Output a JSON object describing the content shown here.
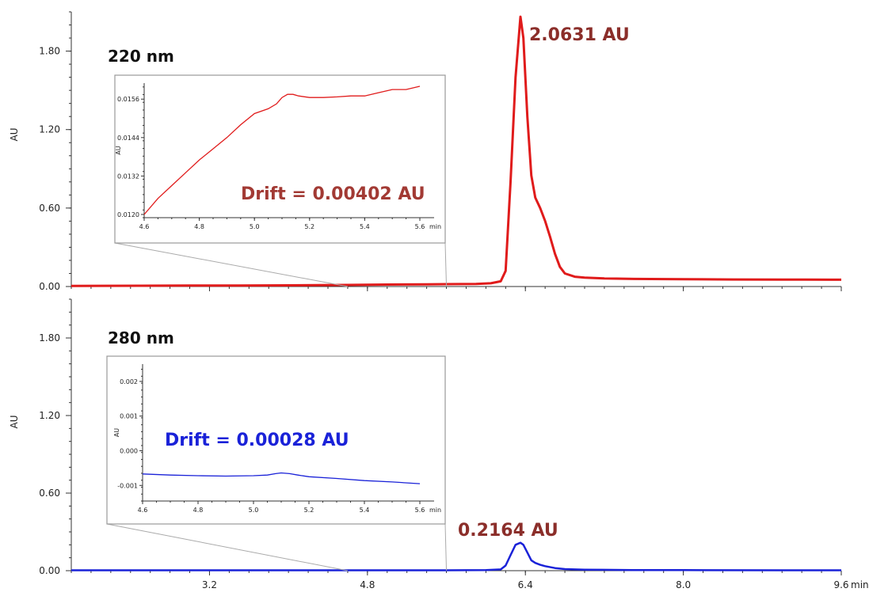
{
  "chart_data": [
    {
      "type": "line",
      "title": "220 nm",
      "ylabel": "AU",
      "xlabel": "",
      "x_unit": "min",
      "xlim": [
        1.8,
        9.6
      ],
      "ylim": [
        0,
        2.1
      ],
      "y_ticks": [
        "0.00",
        "0.60",
        "1.20",
        "1.80"
      ],
      "x_ticks": [
        "3.2",
        "4.8",
        "6.4",
        "8.0",
        "9.6"
      ],
      "color": "#e01b1b",
      "peak_label": "2.0631 AU",
      "peak_label_color": "#8b2e2a",
      "series": [
        {
          "x": [
            1.8,
            2.5,
            3.0,
            3.5,
            4.0,
            4.6,
            5.0,
            5.4,
            5.6,
            5.9,
            6.05,
            6.15,
            6.2,
            6.25,
            6.3,
            6.35,
            6.38,
            6.42,
            6.46,
            6.5,
            6.55,
            6.6,
            6.65,
            6.7,
            6.75,
            6.8,
            6.9,
            7.0,
            7.2,
            7.5,
            8.0,
            8.5,
            9.0,
            9.5,
            9.6
          ],
          "y": [
            0.005,
            0.006,
            0.007,
            0.008,
            0.009,
            0.012,
            0.015,
            0.017,
            0.018,
            0.02,
            0.025,
            0.04,
            0.12,
            0.8,
            1.6,
            2.0631,
            1.9,
            1.3,
            0.85,
            0.68,
            0.6,
            0.5,
            0.38,
            0.25,
            0.15,
            0.1,
            0.075,
            0.068,
            0.062,
            0.058,
            0.056,
            0.054,
            0.053,
            0.052,
            0.052
          ]
        }
      ],
      "inset": {
        "xlim": [
          4.6,
          5.6
        ],
        "ylim": [
          0.0119,
          0.0161
        ],
        "x_ticks": [
          "4.6",
          "4.8",
          "5.0",
          "5.2",
          "5.4",
          "5.6"
        ],
        "x_unit": "min",
        "y_ticks": [
          "0.0120",
          "0.0132",
          "0.0144",
          "0.0156"
        ],
        "ylabel": "AU",
        "annotation": "Drift = 0.00402 AU",
        "annotation_color": "#a23a34",
        "x": [
          4.6,
          4.65,
          4.7,
          4.75,
          4.8,
          4.85,
          4.9,
          4.95,
          5.0,
          5.05,
          5.08,
          5.1,
          5.12,
          5.14,
          5.16,
          5.2,
          5.25,
          5.3,
          5.35,
          5.4,
          5.45,
          5.5,
          5.55,
          5.6
        ],
        "y": [
          0.012,
          0.0125,
          0.0129,
          0.0133,
          0.0137,
          0.01405,
          0.0144,
          0.0148,
          0.01515,
          0.0153,
          0.01545,
          0.01565,
          0.01575,
          0.01575,
          0.0157,
          0.01565,
          0.01565,
          0.01567,
          0.0157,
          0.0157,
          0.0158,
          0.0159,
          0.0159,
          0.016
        ]
      }
    },
    {
      "type": "line",
      "title": "280 nm",
      "ylabel": "AU",
      "xlabel": "",
      "x_unit": "min",
      "xlim": [
        1.8,
        9.6
      ],
      "ylim": [
        0,
        2.1
      ],
      "y_ticks": [
        "0.00",
        "0.60",
        "1.20",
        "1.80"
      ],
      "x_ticks": [
        "3.2",
        "4.8",
        "6.4",
        "8.0",
        "9.6"
      ],
      "color": "#1a22d8",
      "peak_label": "0.2164 AU",
      "peak_label_color": "#8b2e2a",
      "series": [
        {
          "x": [
            1.8,
            3.0,
            4.0,
            5.0,
            5.6,
            6.0,
            6.15,
            6.2,
            6.25,
            6.3,
            6.35,
            6.38,
            6.42,
            6.46,
            6.5,
            6.55,
            6.6,
            6.7,
            6.8,
            7.0,
            7.5,
            8.0,
            9.0,
            9.6
          ],
          "y": [
            0.003,
            0.003,
            0.003,
            0.003,
            0.003,
            0.004,
            0.01,
            0.04,
            0.12,
            0.2,
            0.2164,
            0.2,
            0.14,
            0.08,
            0.06,
            0.045,
            0.035,
            0.02,
            0.012,
            0.008,
            0.005,
            0.004,
            0.003,
            0.003
          ]
        }
      ],
      "inset": {
        "xlim": [
          4.6,
          5.6
        ],
        "ylim": [
          -0.00145,
          0.0025
        ],
        "x_ticks": [
          "4.6",
          "4.8",
          "5.0",
          "5.2",
          "5.4",
          "5.6"
        ],
        "x_unit": "min",
        "y_ticks": [
          "-0.001",
          "0.000",
          "0.001",
          "0.002"
        ],
        "ylabel": "AU",
        "annotation": "Drift = 0.00028 AU",
        "annotation_color": "#1a22d8",
        "x": [
          4.6,
          4.7,
          4.8,
          4.9,
          5.0,
          5.05,
          5.08,
          5.1,
          5.13,
          5.16,
          5.2,
          5.3,
          5.4,
          5.5,
          5.6
        ],
        "y": [
          -0.00067,
          -0.0007,
          -0.00072,
          -0.00073,
          -0.00072,
          -0.0007,
          -0.00066,
          -0.00064,
          -0.00066,
          -0.0007,
          -0.00075,
          -0.0008,
          -0.00086,
          -0.0009,
          -0.00095
        ]
      }
    }
  ]
}
